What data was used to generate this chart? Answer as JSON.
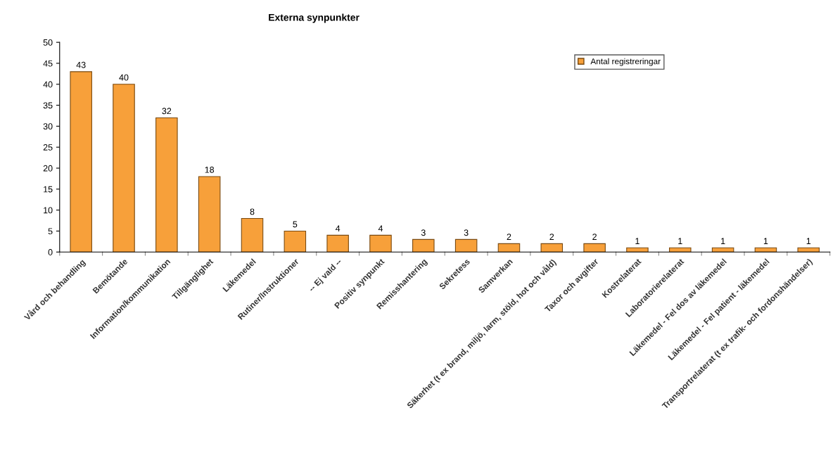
{
  "chart_data": {
    "type": "bar",
    "title": "Externa synpunkter",
    "categories": [
      "Vård och behandling",
      "Bemötande",
      "Information/kommunikation",
      "Tillgänglighet",
      "Läkemedel",
      "Rutiner/Instruktioner",
      "-- Ej vald --",
      "Positiv synpunkt",
      "Remisshantering",
      "Sekretess",
      "Samverkan",
      "Säkerhet (t ex brand, miljö, larm, stöld, hot och våld)",
      "Taxor och avgifter",
      "Kostrelaterat",
      "Laboratorierelaterat",
      "Läkemedel - Fel dos av läkemedel",
      "Läkemedel - Fel patient - läkemedel",
      "Transportrelaterat (t ex trafik- och fordonshändelser)"
    ],
    "series": [
      {
        "name": "Antal registreringar",
        "color": "#f7a03a",
        "values": [
          43,
          40,
          32,
          18,
          8,
          5,
          4,
          4,
          3,
          3,
          2,
          2,
          2,
          1,
          1,
          1,
          1,
          1
        ]
      }
    ],
    "ylim": [
      0,
      50
    ],
    "yticks": [
      0,
      5,
      10,
      15,
      20,
      25,
      30,
      35,
      40,
      45,
      50
    ],
    "data_labels": true,
    "grid": false,
    "legend": "top right"
  }
}
